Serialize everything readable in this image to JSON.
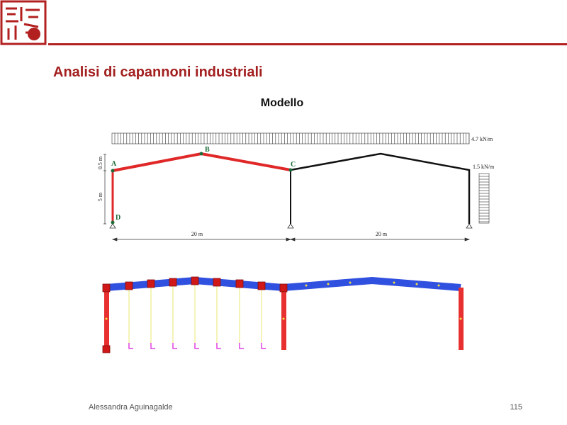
{
  "header": {
    "title": "Analisi di capannoni industriali"
  },
  "figure": {
    "heading": "Modello",
    "labels": {
      "a": "A",
      "b": "B",
      "c": "C",
      "d": "D"
    },
    "load_top": "4.7 kN/m",
    "load_side": "1.5 kN/m",
    "dim_rise": "0.5 m",
    "dim_height": "5 m",
    "span_1": "20 m",
    "span_2": "20 m"
  },
  "footer": {
    "author": "Alessandra Aguinagalde",
    "page": "115"
  }
}
